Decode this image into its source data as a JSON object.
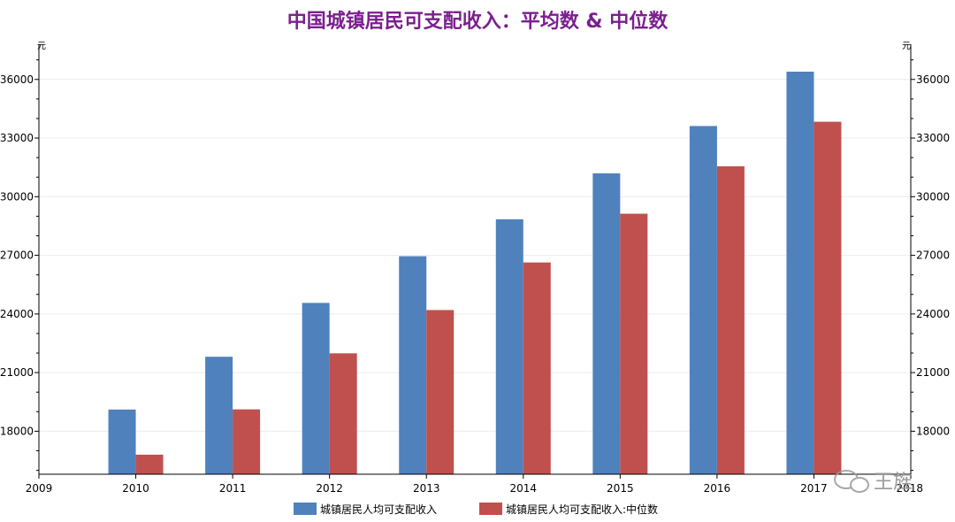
{
  "chart_data": {
    "type": "bar",
    "title": "中国城镇居民可支配收入：平均数 & 中位数",
    "y_unit_left": "元",
    "y_unit_right": "元",
    "categories": [
      "2010",
      "2011",
      "2012",
      "2013",
      "2014",
      "2015",
      "2016",
      "2017"
    ],
    "x_tick_labels": [
      "2009",
      "2010",
      "2011",
      "2012",
      "2013",
      "2014",
      "2015",
      "2016",
      "2017",
      "2018"
    ],
    "series": [
      {
        "name": "城镇居民人均可支配收入",
        "color": "#4f81bd",
        "values": [
          19109,
          21810,
          24565,
          26955,
          28844,
          31195,
          33616,
          36396
        ]
      },
      {
        "name": "城镇居民人均可支配收入:中位数",
        "color": "#c0504d",
        "values": [
          16800,
          19118,
          21986,
          24200,
          26635,
          29129,
          31554,
          33834
        ]
      }
    ],
    "ylim": [
      15800,
      37800
    ],
    "yticks": [
      18000,
      21000,
      24000,
      27000,
      30000,
      33000,
      36000
    ],
    "grid": true,
    "legend_position": "bottom"
  },
  "watermark": {
    "text": "王旌"
  }
}
